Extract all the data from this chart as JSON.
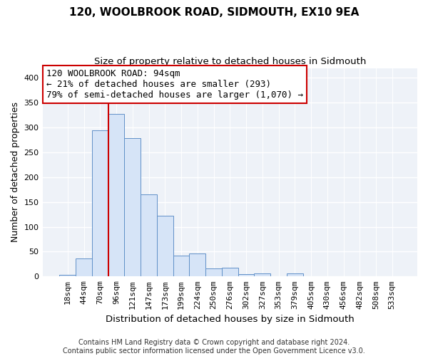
{
  "title": "120, WOOLBROOK ROAD, SIDMOUTH, EX10 9EA",
  "subtitle": "Size of property relative to detached houses in Sidmouth",
  "xlabel": "Distribution of detached houses by size in Sidmouth",
  "ylabel": "Number of detached properties",
  "bin_labels": [
    "18sqm",
    "44sqm",
    "70sqm",
    "96sqm",
    "121sqm",
    "147sqm",
    "173sqm",
    "199sqm",
    "224sqm",
    "250sqm",
    "276sqm",
    "302sqm",
    "327sqm",
    "353sqm",
    "379sqm",
    "405sqm",
    "430sqm",
    "456sqm",
    "482sqm",
    "508sqm",
    "533sqm"
  ],
  "bar_values": [
    4,
    37,
    295,
    328,
    279,
    166,
    123,
    42,
    46,
    16,
    17,
    5,
    6,
    0,
    6,
    0,
    1,
    0,
    0,
    0,
    1
  ],
  "bar_color": "#d6e4f7",
  "bar_edge_color": "#6090c8",
  "vline_x_index": 3,
  "vline_color": "#cc0000",
  "annotation_line1": "120 WOOLBROOK ROAD: 94sqm",
  "annotation_line2": "← 21% of detached houses are smaller (293)",
  "annotation_line3": "79% of semi-detached houses are larger (1,070) →",
  "annotation_box_color": "#ffffff",
  "annotation_box_edge": "#cc0000",
  "ylim": [
    0,
    420
  ],
  "yticks": [
    0,
    50,
    100,
    150,
    200,
    250,
    300,
    350,
    400
  ],
  "footer_text": "Contains HM Land Registry data © Crown copyright and database right 2024.\nContains public sector information licensed under the Open Government Licence v3.0.",
  "bg_color": "#ffffff",
  "plot_bg_color": "#eef2f8",
  "grid_color": "#ffffff",
  "title_fontsize": 11,
  "subtitle_fontsize": 9.5,
  "ylabel_fontsize": 9,
  "xlabel_fontsize": 9.5,
  "tick_fontsize": 8,
  "footer_fontsize": 7
}
